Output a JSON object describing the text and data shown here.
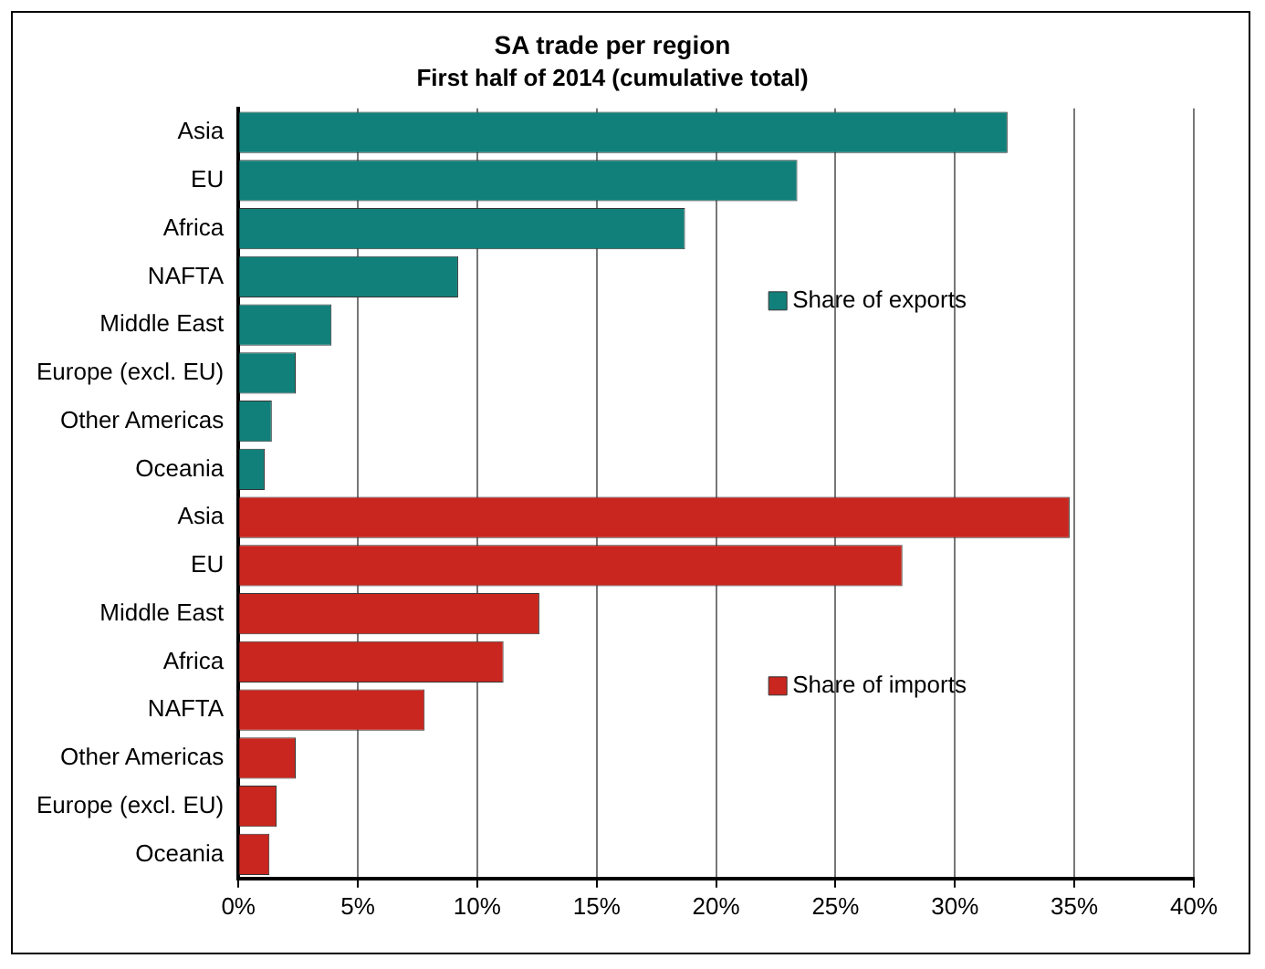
{
  "chart_data": {
    "type": "bar",
    "orientation": "horizontal",
    "title": "SA trade per region",
    "subtitle": "First half of 2014 (cumulative total)",
    "categories": [
      "Asia",
      "EU",
      "Africa",
      "NAFTA",
      "Middle East",
      "Europe (excl. EU)",
      "Other Americas",
      "Oceania",
      "Asia",
      "EU",
      "Middle East",
      "Africa",
      "NAFTA",
      "Other Americas",
      "Europe (excl. EU)",
      "Oceania"
    ],
    "series": [
      {
        "name": "Share of exports",
        "color": "#11807a",
        "values": [
          32.2,
          23.4,
          18.7,
          9.2,
          3.9,
          2.4,
          1.4,
          1.1,
          null,
          null,
          null,
          null,
          null,
          null,
          null,
          null
        ]
      },
      {
        "name": "Share of imports",
        "color": "#c8261e",
        "values": [
          null,
          null,
          null,
          null,
          null,
          null,
          null,
          null,
          34.8,
          27.8,
          12.6,
          11.1,
          7.8,
          2.4,
          1.6,
          1.3
        ]
      }
    ],
    "xlim": [
      0,
      40
    ],
    "xticks": [
      {
        "value": 0,
        "label": "0%"
      },
      {
        "value": 5,
        "label": "5%"
      },
      {
        "value": 10,
        "label": "10%"
      },
      {
        "value": 15,
        "label": "15%"
      },
      {
        "value": 20,
        "label": "20%"
      },
      {
        "value": 25,
        "label": "25%"
      },
      {
        "value": 30,
        "label": "30%"
      },
      {
        "value": 35,
        "label": "35%"
      },
      {
        "value": 40,
        "label": "40%"
      }
    ],
    "grid": "x",
    "legend": "right"
  }
}
